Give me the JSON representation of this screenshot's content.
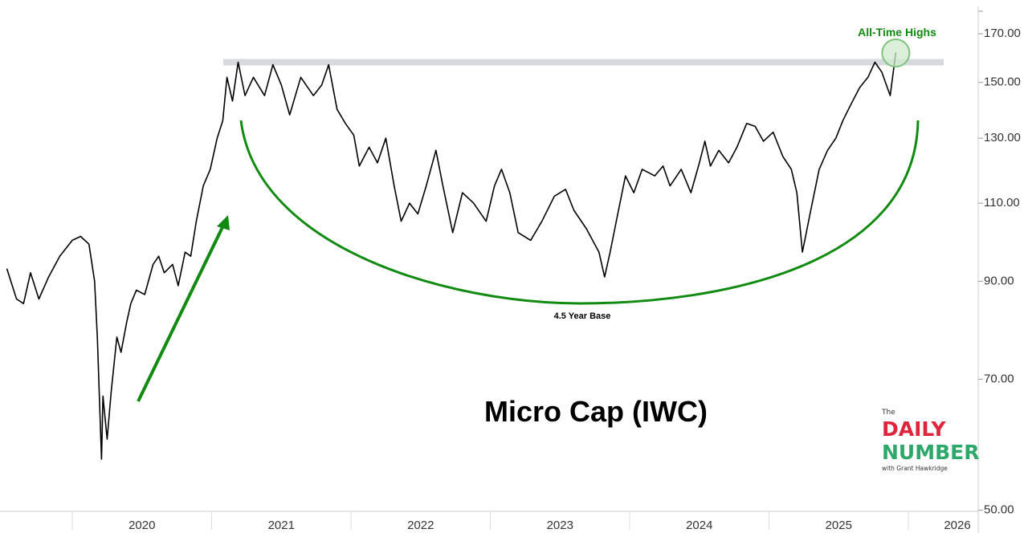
{
  "chart_data": {
    "type": "line",
    "title": "Micro Cap (IWC)",
    "xlabel": "",
    "ylabel": "",
    "yscale": "log",
    "ylim": [
      50,
      180
    ],
    "xlim": [
      2019.5,
      2026.4
    ],
    "grid": false,
    "y_ticks": [
      "50.00",
      "70.00",
      "90.00",
      "110.00",
      "130.00",
      "150.00",
      "170.00"
    ],
    "y_tick_values": [
      50,
      70,
      90,
      110,
      130,
      150,
      170
    ],
    "x_ticks": [
      "2020",
      "2021",
      "2022",
      "2023",
      "2024",
      "2025",
      "2026"
    ],
    "series": [
      {
        "name": "IWC",
        "color": "#000000",
        "x": [
          2019.53,
          2019.6,
          2019.65,
          2019.7,
          2019.76,
          2019.83,
          2019.91,
          2020.0,
          2020.06,
          2020.12,
          2020.16,
          2020.18,
          2020.21,
          2020.22,
          2020.25,
          2020.28,
          2020.32,
          2020.35,
          2020.39,
          2020.42,
          2020.46,
          2020.52,
          2020.58,
          2020.62,
          2020.66,
          2020.72,
          2020.76,
          2020.81,
          2020.85,
          2020.89,
          2020.94,
          2020.99,
          2021.04,
          2021.08,
          2021.11,
          2021.15,
          2021.19,
          2021.24,
          2021.3,
          2021.38,
          2021.44,
          2021.5,
          2021.56,
          2021.64,
          2021.73,
          2021.79,
          2021.84,
          2021.9,
          2021.96,
          2022.02,
          2022.06,
          2022.13,
          2022.19,
          2022.25,
          2022.31,
          2022.36,
          2022.42,
          2022.48,
          2022.54,
          2022.61,
          2022.66,
          2022.73,
          2022.8,
          2022.88,
          2022.97,
          2023.03,
          2023.08,
          2023.14,
          2023.2,
          2023.29,
          2023.37,
          2023.46,
          2023.54,
          2023.6,
          2023.69,
          2023.78,
          2023.82,
          2023.86,
          2023.92,
          2023.97,
          2024.03,
          2024.09,
          2024.18,
          2024.24,
          2024.29,
          2024.37,
          2024.44,
          2024.5,
          2024.54,
          2024.58,
          2024.64,
          2024.71,
          2024.77,
          2024.84,
          2024.9,
          2024.96,
          2025.03,
          2025.1,
          2025.16,
          2025.2,
          2025.24,
          2025.3,
          2025.36,
          2025.42,
          2025.48,
          2025.53,
          2025.59,
          2025.65,
          2025.71,
          2025.76,
          2025.81,
          2025.87,
          2025.91
        ],
        "y": [
          93,
          86,
          85,
          92,
          86,
          91,
          96,
          100,
          101,
          99,
          90,
          78,
          57,
          67,
          60,
          68,
          78,
          75,
          81,
          85,
          88,
          87,
          94,
          96,
          92,
          94,
          89,
          97,
          96,
          105,
          115,
          120,
          130,
          136,
          152,
          143,
          158,
          145,
          152,
          145,
          157,
          149,
          138,
          152,
          145,
          149,
          157,
          140,
          135,
          131,
          121,
          127,
          122,
          130,
          115,
          105,
          110,
          107,
          115,
          126,
          115,
          102,
          113,
          110,
          105,
          115,
          120,
          113,
          102,
          100,
          105,
          112,
          114,
          108,
          103,
          97,
          91,
          97,
          108,
          118,
          113,
          120,
          118,
          121,
          115,
          120,
          113,
          122,
          129,
          121,
          126,
          122,
          127,
          135,
          134,
          129,
          132,
          124,
          120,
          113,
          97,
          108,
          120,
          126,
          130,
          136,
          142,
          148,
          152,
          158,
          154,
          145,
          162
        ]
      }
    ],
    "annotations": {
      "resistance_level": 158,
      "ath_label": "All-Time Highs",
      "base_label": "4.5 Year Base",
      "colors": {
        "green": "#118a11",
        "band": "#d6d9de",
        "circle_fill": "#cfe9cf"
      }
    }
  },
  "logo": {
    "the": "The",
    "daily": "DAILY",
    "number": "NUMBER",
    "byline": "with Grant Hawkridge"
  }
}
